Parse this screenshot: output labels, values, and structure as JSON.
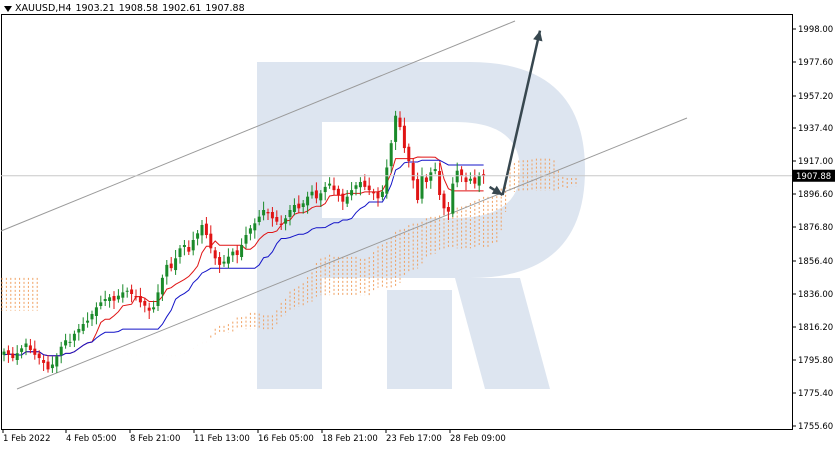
{
  "header": {
    "symbol": "XAUUSD,H4",
    "open": "1903.21",
    "high": "1908.58",
    "low": "1902.61",
    "close": "1907.88"
  },
  "colors": {
    "bull": "#1a8a2a",
    "bear": "#e01414",
    "tenkan": "#e01414",
    "kijun": "#1414c8",
    "cloud_bull": "#f0a060",
    "cloud_bear": "#c8a0d8",
    "channel": "#9a9a9a",
    "arrow": "#37474f",
    "watermark": "#dde5f0"
  },
  "chart_data": {
    "type": "candlestick",
    "symbol": "XAUUSD",
    "timeframe": "H4",
    "ylim": [
      1755.6,
      2015
    ],
    "y_ticks": [
      "1998.00",
      "1977.60",
      "1957.20",
      "1937.40",
      "1917.00",
      "1896.60",
      "1876.80",
      "1856.40",
      "1836.00",
      "1816.20",
      "1795.80",
      "1775.40",
      "1755.60"
    ],
    "x_ticks": [
      "1 Feb 2022",
      "4 Feb 05:00",
      "8 Feb 21:00",
      "11 Feb 13:00",
      "16 Feb 05:00",
      "18 Feb 21:00",
      "23 Feb 17:00",
      "28 Feb 09:00"
    ],
    "last_price": "1907.88",
    "closes": [
      1801,
      1799,
      1797,
      1800,
      1803,
      1806,
      1802,
      1799,
      1797,
      1794,
      1790,
      1793,
      1798,
      1804,
      1808,
      1807,
      1812,
      1815,
      1818,
      1820,
      1824,
      1828,
      1831,
      1833,
      1834,
      1832,
      1835,
      1837,
      1838,
      1836,
      1834,
      1831,
      1829,
      1826,
      1828,
      1837,
      1846,
      1854,
      1852,
      1858,
      1864,
      1866,
      1862,
      1869,
      1873,
      1878,
      1872,
      1864,
      1858,
      1854,
      1856,
      1859,
      1862,
      1860,
      1866,
      1872,
      1876,
      1879,
      1883,
      1887,
      1885,
      1882,
      1880,
      1878,
      1882,
      1887,
      1890,
      1888,
      1891,
      1895,
      1898,
      1894,
      1897,
      1901,
      1903,
      1899,
      1896,
      1892,
      1895,
      1899,
      1902,
      1904,
      1901,
      1899,
      1897,
      1894,
      1898,
      1913,
      1928,
      1945,
      1938,
      1925,
      1917,
      1905,
      1893,
      1908,
      1904,
      1910,
      1912,
      1896,
      1888,
      1886,
      1903,
      1911,
      1908,
      1904,
      1906,
      1903,
      1908,
      1907.88
    ],
    "projection_arrows": [
      {
        "from": [
          "28 Feb",
          1901
        ],
        "to": [
          "28 Feb",
          1896
        ]
      },
      {
        "from": [
          "28 Feb",
          1896
        ],
        "to": [
          "1 Mar",
          1997
        ]
      }
    ],
    "channel_lines": 2,
    "grid": false
  }
}
